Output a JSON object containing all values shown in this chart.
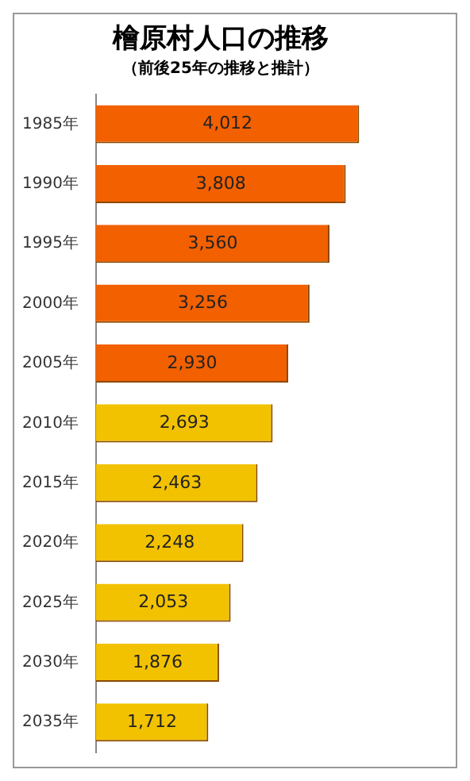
{
  "chart_data": {
    "type": "bar",
    "orientation": "horizontal",
    "title": "檜原村人口の推移",
    "subtitle": "（前後25年の推移と推計）",
    "categories": [
      "1985年",
      "1990年",
      "1995年",
      "2000年",
      "2005年",
      "2010年",
      "2015年",
      "2020年",
      "2025年",
      "2030年",
      "2035年"
    ],
    "values": [
      4012,
      3808,
      3560,
      3256,
      2930,
      2693,
      2463,
      2248,
      2053,
      1876,
      1712
    ],
    "value_labels": [
      "4,012",
      "3,808",
      "3,560",
      "3,256",
      "2,930",
      "2,693",
      "2,463",
      "2,248",
      "2,053",
      "1,876",
      "1,712"
    ],
    "colors": [
      "#f26000",
      "#f26000",
      "#f26000",
      "#f26000",
      "#f26000",
      "#f2c200",
      "#f2c200",
      "#f2c200",
      "#f2c200",
      "#f2c200",
      "#f2c200"
    ],
    "legend": false
  }
}
